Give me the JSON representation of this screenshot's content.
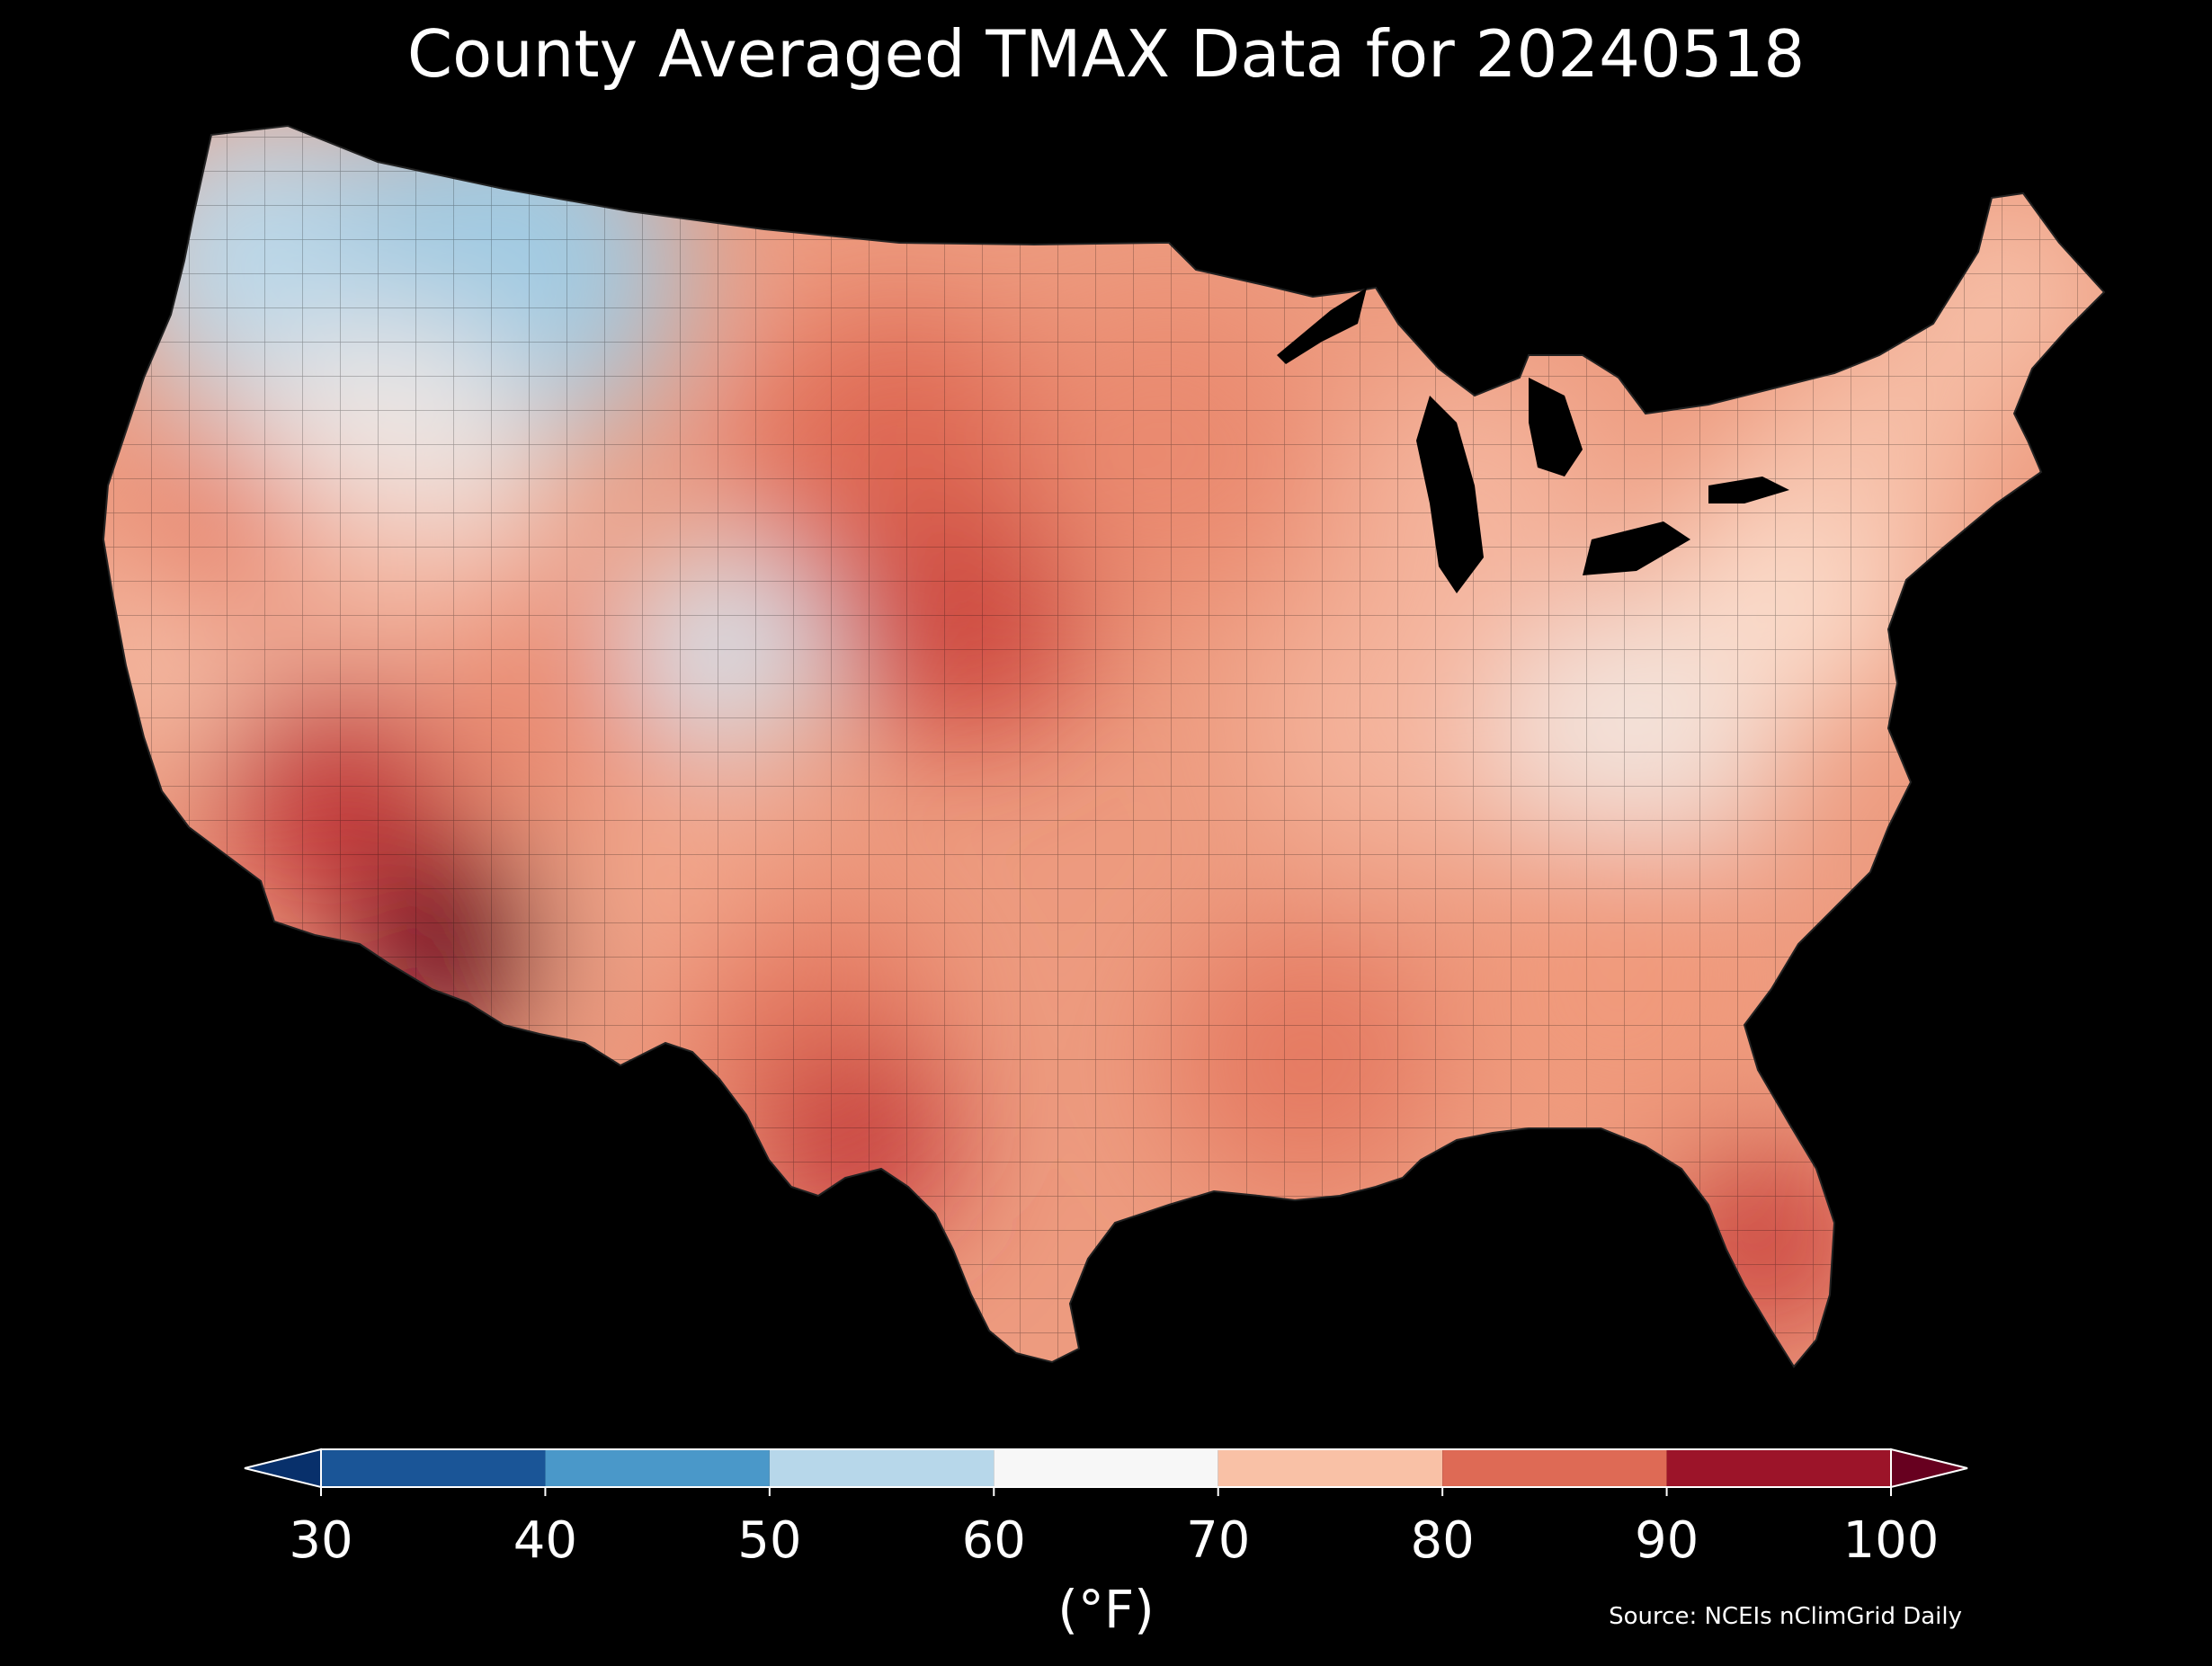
{
  "title": "County Averaged TMAX Data for 20240518",
  "colorbar": {
    "label": "(°F)",
    "ticks": [
      "30",
      "40",
      "50",
      "60",
      "70",
      "80",
      "90",
      "100"
    ],
    "bins": [
      {
        "range": [
          30,
          40
        ],
        "color": "#1a5597"
      },
      {
        "range": [
          40,
          50
        ],
        "color": "#4a98c9"
      },
      {
        "range": [
          50,
          60
        ],
        "color": "#b7d7ea"
      },
      {
        "range": [
          60,
          70
        ],
        "color": "#f7f7f7"
      },
      {
        "range": [
          70,
          80
        ],
        "color": "#f9c1a6"
      },
      {
        "range": [
          80,
          90
        ],
        "color": "#de6a55"
      },
      {
        "range": [
          90,
          100
        ],
        "color": "#9c1429"
      }
    ],
    "under_color": "#08306b",
    "over_color": "#67001f"
  },
  "source": "Source: NCEIs nClimGrid Daily",
  "map": {
    "region": "contiguous-united-states",
    "units": "county",
    "background": "#000000",
    "regions": [
      {
        "name": "pacific-northwest-coast",
        "value": 55
      },
      {
        "name": "northern-rockies",
        "value": 52
      },
      {
        "name": "great-basin-north",
        "value": 64
      },
      {
        "name": "california-coast",
        "value": 74
      },
      {
        "name": "central-valley",
        "value": 84
      },
      {
        "name": "nevada-central",
        "value": 76
      },
      {
        "name": "desert-southwest",
        "value": 92
      },
      {
        "name": "southern-arizona",
        "value": 101
      },
      {
        "name": "utah-colorado-plateau",
        "value": 82
      },
      {
        "name": "colorado-front-range",
        "value": 58
      },
      {
        "name": "new-mexico",
        "value": 78
      },
      {
        "name": "west-texas",
        "value": 84
      },
      {
        "name": "south-texas",
        "value": 92
      },
      {
        "name": "great-plains",
        "value": 86
      },
      {
        "name": "central-plains-core",
        "value": 90
      },
      {
        "name": "upper-midwest",
        "value": 82
      },
      {
        "name": "great-lakes",
        "value": 76
      },
      {
        "name": "ohio-valley",
        "value": 76
      },
      {
        "name": "appalachians",
        "value": 66
      },
      {
        "name": "mid-atlantic",
        "value": 70
      },
      {
        "name": "southeast",
        "value": 80
      },
      {
        "name": "gulf-coast",
        "value": 84
      },
      {
        "name": "florida",
        "value": 91
      },
      {
        "name": "northeast",
        "value": 74
      },
      {
        "name": "new-england",
        "value": 74
      }
    ]
  }
}
